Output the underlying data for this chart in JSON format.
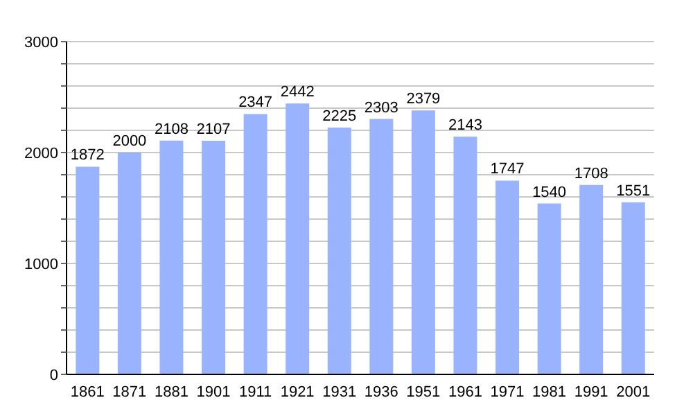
{
  "chart_data": {
    "type": "bar",
    "categories": [
      "1861",
      "1871",
      "1881",
      "1901",
      "1911",
      "1921",
      "1931",
      "1936",
      "1951",
      "1961",
      "1971",
      "1981",
      "1991",
      "2001"
    ],
    "values": [
      1872,
      2000,
      2108,
      2107,
      2347,
      2442,
      2225,
      2303,
      2379,
      2143,
      1747,
      1540,
      1708,
      1551
    ],
    "color": "#99b3ff",
    "ylim": [
      0,
      3000
    ],
    "yticks": [
      0,
      {
        "value": 200,
        "label": null
      },
      {
        "value": 400,
        "label": null
      },
      {
        "value": 600,
        "label": null
      },
      {
        "value": 800,
        "label": null
      },
      1000,
      {
        "value": 1200,
        "label": null
      },
      {
        "value": 1400,
        "label": null
      },
      {
        "value": 1600,
        "label": null
      },
      {
        "value": 1800,
        "label": null
      },
      2000,
      {
        "value": 2200,
        "label": null
      },
      {
        "value": 2400,
        "label": null
      },
      {
        "value": 2600,
        "label": null
      },
      {
        "value": 2800,
        "label": null
      },
      3000
    ],
    "grid": "y",
    "data_labels": true
  }
}
